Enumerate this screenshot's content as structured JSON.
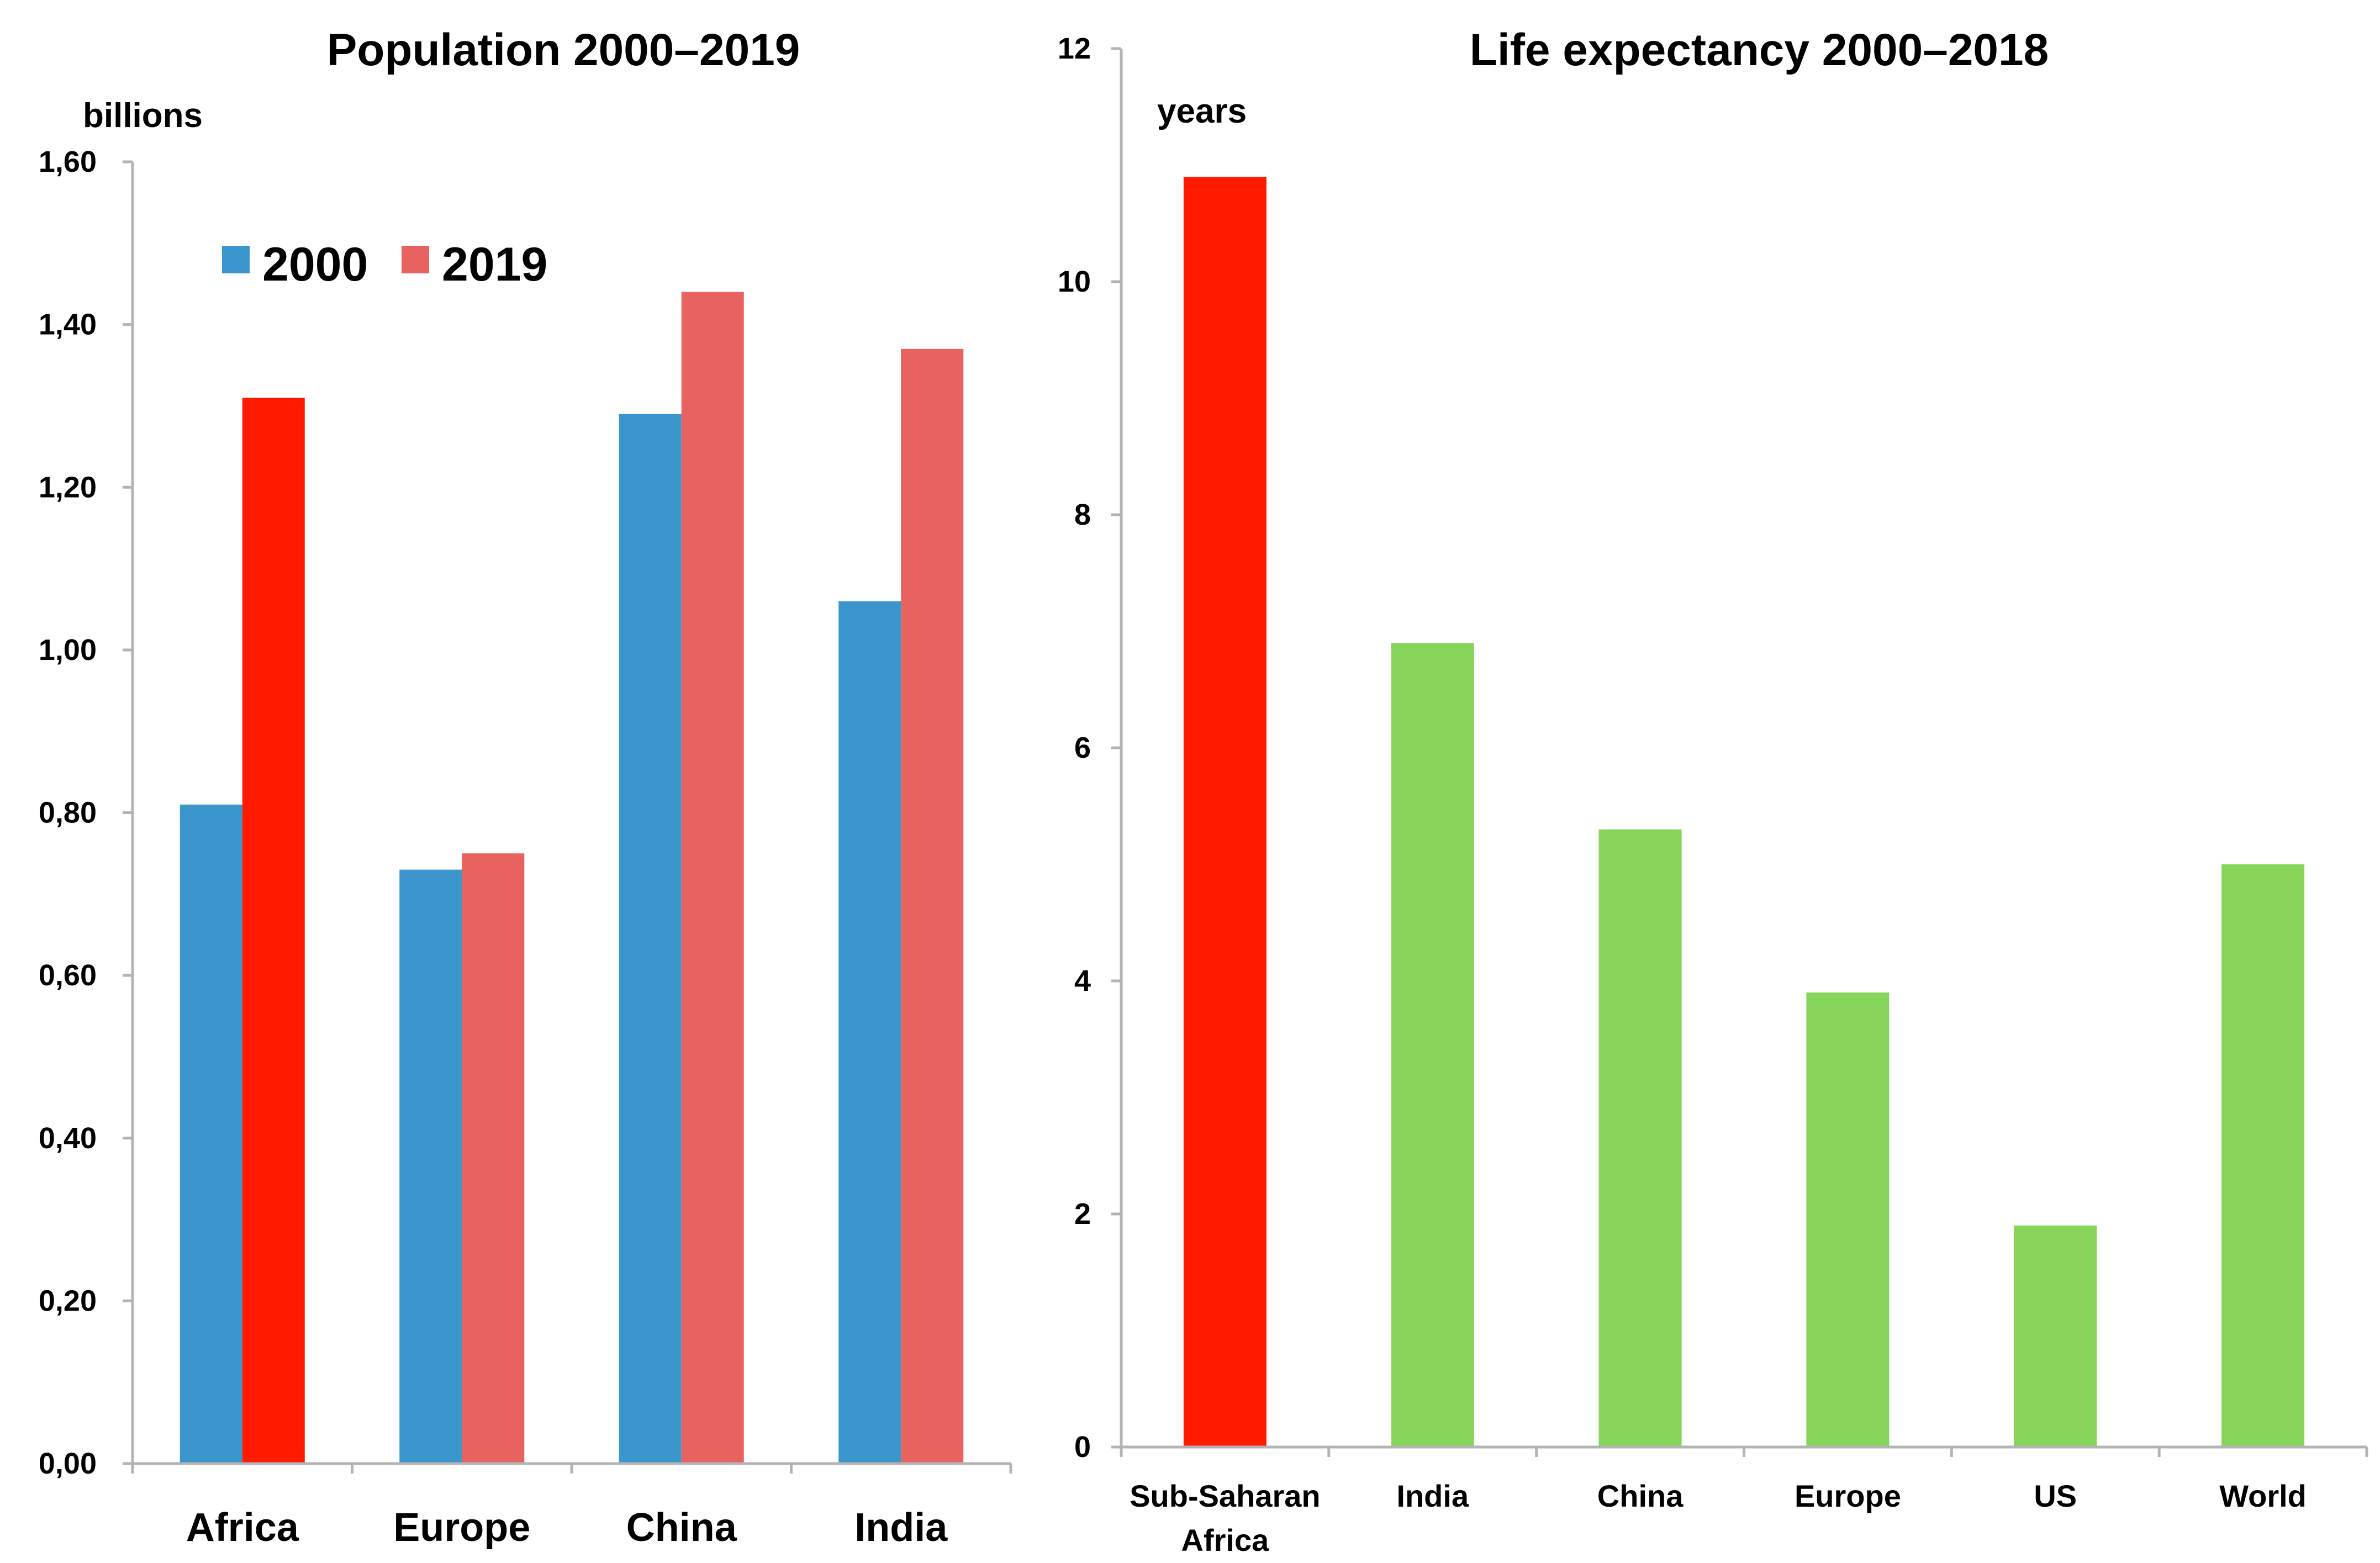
{
  "chart_data": [
    {
      "type": "bar",
      "title": "Population 2000–2019",
      "ylabel": "billions",
      "xlabel": "",
      "categories": [
        "Africa",
        "Europe",
        "China",
        "India"
      ],
      "series": [
        {
          "name": "2000",
          "color": "#3a96cc",
          "values": [
            0.81,
            0.73,
            1.29,
            1.06
          ]
        },
        {
          "name": "2019",
          "color": "#e86360",
          "values": [
            1.31,
            0.75,
            1.44,
            1.37
          ]
        }
      ],
      "highlight": {
        "category": "Africa",
        "series": "2019",
        "color": "#ff1a00"
      },
      "ylim": [
        0,
        1.6
      ],
      "yticks": [
        0,
        0.2,
        0.4,
        0.6,
        0.8,
        1.0,
        1.2,
        1.4,
        1.6
      ],
      "ytick_labels": [
        "0,00",
        "0,20",
        "0,40",
        "0,60",
        "0,80",
        "1,00",
        "1,20",
        "1,40",
        "1,60"
      ],
      "grid": false,
      "legend": "top-left"
    },
    {
      "type": "bar",
      "title": "Life expectancy 2000–2018",
      "ylabel": "years",
      "xlabel": "",
      "categories": [
        "Sub-Saharan Africa",
        "India",
        "China",
        "Europe",
        "US",
        "World"
      ],
      "category_lines": [
        [
          "Sub-Saharan",
          "Africa"
        ],
        [
          "India"
        ],
        [
          "China"
        ],
        [
          "Europe"
        ],
        [
          "US"
        ],
        [
          "World"
        ]
      ],
      "values": [
        10.9,
        6.9,
        5.3,
        3.9,
        1.9,
        5.0
      ],
      "colors": [
        "#ff1a00",
        "#86d55a",
        "#86d55a",
        "#86d55a",
        "#86d55a",
        "#86d55a"
      ],
      "ylim": [
        0,
        12
      ],
      "yticks": [
        0,
        2,
        4,
        6,
        8,
        10,
        12
      ],
      "ytick_labels": [
        "0",
        "2",
        "4",
        "6",
        "8",
        "10",
        "12"
      ],
      "grid": false
    }
  ]
}
